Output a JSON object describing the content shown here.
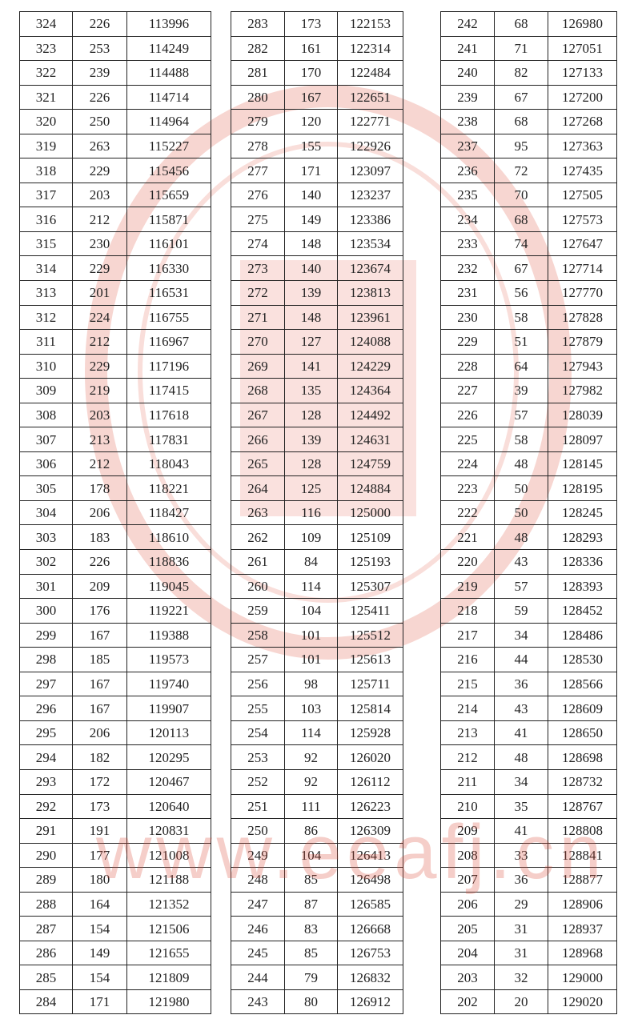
{
  "watermark": "www.eeafj.cn",
  "tables": [
    {
      "rows": [
        [
          324,
          226,
          113996
        ],
        [
          323,
          253,
          114249
        ],
        [
          322,
          239,
          114488
        ],
        [
          321,
          226,
          114714
        ],
        [
          320,
          250,
          114964
        ],
        [
          319,
          263,
          115227
        ],
        [
          318,
          229,
          115456
        ],
        [
          317,
          203,
          115659
        ],
        [
          316,
          212,
          115871
        ],
        [
          315,
          230,
          116101
        ],
        [
          314,
          229,
          116330
        ],
        [
          313,
          201,
          116531
        ],
        [
          312,
          224,
          116755
        ],
        [
          311,
          212,
          116967
        ],
        [
          310,
          229,
          117196
        ],
        [
          309,
          219,
          117415
        ],
        [
          308,
          203,
          117618
        ],
        [
          307,
          213,
          117831
        ],
        [
          306,
          212,
          118043
        ],
        [
          305,
          178,
          118221
        ],
        [
          304,
          206,
          118427
        ],
        [
          303,
          183,
          118610
        ],
        [
          302,
          226,
          118836
        ],
        [
          301,
          209,
          119045
        ],
        [
          300,
          176,
          119221
        ],
        [
          299,
          167,
          119388
        ],
        [
          298,
          185,
          119573
        ],
        [
          297,
          167,
          119740
        ],
        [
          296,
          167,
          119907
        ],
        [
          295,
          206,
          120113
        ],
        [
          294,
          182,
          120295
        ],
        [
          293,
          172,
          120467
        ],
        [
          292,
          173,
          120640
        ],
        [
          291,
          191,
          120831
        ],
        [
          290,
          177,
          121008
        ],
        [
          289,
          180,
          121188
        ],
        [
          288,
          164,
          121352
        ],
        [
          287,
          154,
          121506
        ],
        [
          286,
          149,
          121655
        ],
        [
          285,
          154,
          121809
        ],
        [
          284,
          171,
          121980
        ]
      ]
    },
    {
      "rows": [
        [
          283,
          173,
          122153
        ],
        [
          282,
          161,
          122314
        ],
        [
          281,
          170,
          122484
        ],
        [
          280,
          167,
          122651
        ],
        [
          279,
          120,
          122771
        ],
        [
          278,
          155,
          122926
        ],
        [
          277,
          171,
          123097
        ],
        [
          276,
          140,
          123237
        ],
        [
          275,
          149,
          123386
        ],
        [
          274,
          148,
          123534
        ],
        [
          273,
          140,
          123674
        ],
        [
          272,
          139,
          123813
        ],
        [
          271,
          148,
          123961
        ],
        [
          270,
          127,
          124088
        ],
        [
          269,
          141,
          124229
        ],
        [
          268,
          135,
          124364
        ],
        [
          267,
          128,
          124492
        ],
        [
          266,
          139,
          124631
        ],
        [
          265,
          128,
          124759
        ],
        [
          264,
          125,
          124884
        ],
        [
          263,
          116,
          125000
        ],
        [
          262,
          109,
          125109
        ],
        [
          261,
          84,
          125193
        ],
        [
          260,
          114,
          125307
        ],
        [
          259,
          104,
          125411
        ],
        [
          258,
          101,
          125512
        ],
        [
          257,
          101,
          125613
        ],
        [
          256,
          98,
          125711
        ],
        [
          255,
          103,
          125814
        ],
        [
          254,
          114,
          125928
        ],
        [
          253,
          92,
          126020
        ],
        [
          252,
          92,
          126112
        ],
        [
          251,
          111,
          126223
        ],
        [
          250,
          86,
          126309
        ],
        [
          249,
          104,
          126413
        ],
        [
          248,
          85,
          126498
        ],
        [
          247,
          87,
          126585
        ],
        [
          246,
          83,
          126668
        ],
        [
          245,
          85,
          126753
        ],
        [
          244,
          79,
          126832
        ],
        [
          243,
          80,
          126912
        ]
      ]
    },
    {
      "rows": [
        [
          242,
          68,
          126980
        ],
        [
          241,
          71,
          127051
        ],
        [
          240,
          82,
          127133
        ],
        [
          239,
          67,
          127200
        ],
        [
          238,
          68,
          127268
        ],
        [
          237,
          95,
          127363
        ],
        [
          236,
          72,
          127435
        ],
        [
          235,
          70,
          127505
        ],
        [
          234,
          68,
          127573
        ],
        [
          233,
          74,
          127647
        ],
        [
          232,
          67,
          127714
        ],
        [
          231,
          56,
          127770
        ],
        [
          230,
          58,
          127828
        ],
        [
          229,
          51,
          127879
        ],
        [
          228,
          64,
          127943
        ],
        [
          227,
          39,
          127982
        ],
        [
          226,
          57,
          128039
        ],
        [
          225,
          58,
          128097
        ],
        [
          224,
          48,
          128145
        ],
        [
          223,
          50,
          128195
        ],
        [
          222,
          50,
          128245
        ],
        [
          221,
          48,
          128293
        ],
        [
          220,
          43,
          128336
        ],
        [
          219,
          57,
          128393
        ],
        [
          218,
          59,
          128452
        ],
        [
          217,
          34,
          128486
        ],
        [
          216,
          44,
          128530
        ],
        [
          215,
          36,
          128566
        ],
        [
          214,
          43,
          128609
        ],
        [
          213,
          41,
          128650
        ],
        [
          212,
          48,
          128698
        ],
        [
          211,
          34,
          128732
        ],
        [
          210,
          35,
          128767
        ],
        [
          209,
          41,
          128808
        ],
        [
          208,
          33,
          128841
        ],
        [
          207,
          36,
          128877
        ],
        [
          206,
          29,
          128906
        ],
        [
          205,
          31,
          128937
        ],
        [
          204,
          31,
          128968
        ],
        [
          203,
          32,
          129000
        ],
        [
          202,
          20,
          129020
        ]
      ]
    }
  ]
}
